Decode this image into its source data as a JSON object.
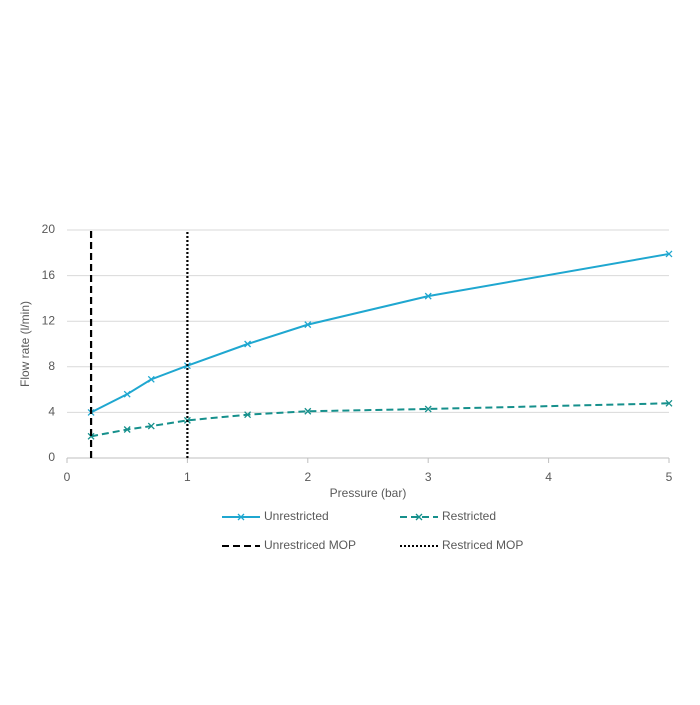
{
  "chart_data": {
    "type": "line",
    "x_label": "Pressure (bar)",
    "y_label": "Flow rate (l/min)",
    "xlim": [
      0,
      5
    ],
    "xticks": [
      0,
      1,
      2,
      3,
      4,
      5
    ],
    "ylim": [
      0,
      20
    ],
    "yticks": [
      0,
      4,
      8,
      12,
      16,
      20
    ],
    "grid": true,
    "series": [
      {
        "name": "Unrestricted",
        "color": "#1fa7d0",
        "dash": "solid",
        "marker": "x",
        "x": [
          0.2,
          0.5,
          0.7,
          1,
          1.5,
          2,
          3,
          5
        ],
        "values": [
          4,
          5.6,
          6.9,
          8.1,
          10,
          11.7,
          14.2,
          17.9
        ]
      },
      {
        "name": "Restricted",
        "color": "#16908c",
        "dash": "dashed",
        "marker": "x",
        "x": [
          0.2,
          0.5,
          0.7,
          1,
          1.5,
          2,
          3,
          5
        ],
        "values": [
          1.9,
          2.5,
          2.8,
          3.3,
          3.8,
          4.1,
          4.3,
          4.8
        ]
      },
      {
        "name": "Unrestriced MOP",
        "color": "#000000",
        "dash": "dashed",
        "marker": "none",
        "x": [
          0.2,
          0.2
        ],
        "values": [
          0,
          20
        ]
      },
      {
        "name": "Restriced MOP",
        "color": "#000000",
        "dash": "dotted",
        "marker": "none",
        "x": [
          1,
          1
        ],
        "values": [
          0,
          20
        ]
      }
    ]
  }
}
